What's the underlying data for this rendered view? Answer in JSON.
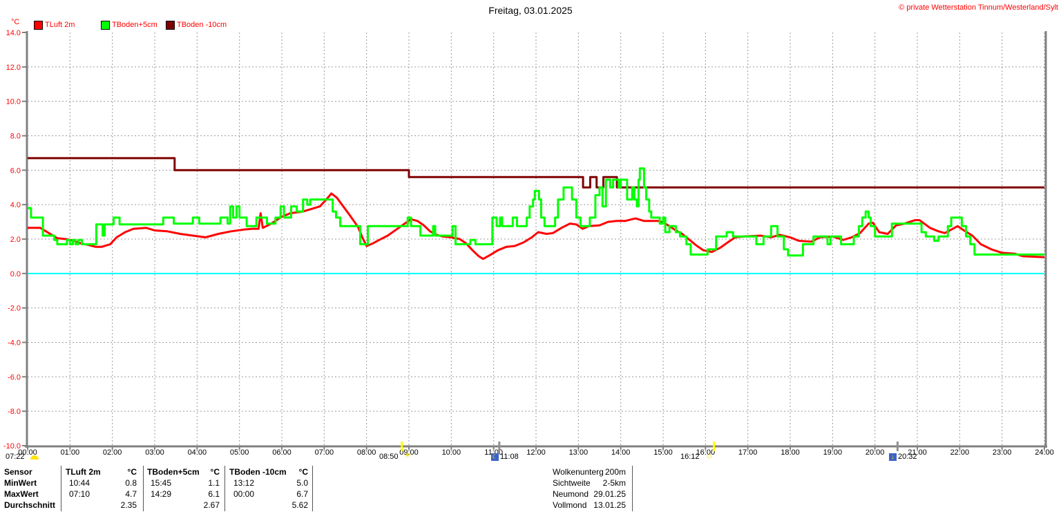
{
  "header": {
    "title": "Freitag, 03.01.2025",
    "copyright": "© private Wetterstation Tinnum/Westerland/Sylt"
  },
  "legend": {
    "items": [
      {
        "label": "TLuft 2m",
        "color": "#ff0000"
      },
      {
        "label": "TBoden+5cm",
        "color": "#00ff00"
      },
      {
        "label": "TBoden -10cm",
        "color": "#800000"
      }
    ]
  },
  "sun_moon": {
    "dawn": "07:22",
    "sunrise": "08:50",
    "moonrise": "11:08",
    "sunset": "16:12",
    "moonset": "20:32",
    "axis_marks": [
      {
        "time": "08:50",
        "kind": "sun"
      },
      {
        "time": "11:08",
        "kind": "moon"
      },
      {
        "time": "16:12",
        "kind": "sun"
      },
      {
        "time": "20:32",
        "kind": "moon"
      }
    ]
  },
  "chart_data": {
    "type": "line",
    "title": "Freitag, 03.01.2025",
    "x_axis": {
      "min": 0,
      "max": 24,
      "tick_hours": 1,
      "labels": [
        "00:00",
        "01:00",
        "02:00",
        "03:00",
        "04:00",
        "05:00",
        "06:00",
        "07:00",
        "08:00",
        "09:00",
        "10:00",
        "11:00",
        "12:00",
        "13:00",
        "14:00",
        "15:00",
        "16:00",
        "17:00",
        "18:00",
        "19:00",
        "20:00",
        "21:00",
        "22:00",
        "23:00",
        "24:00"
      ]
    },
    "y_axis": {
      "unit": "°C",
      "min": -10,
      "max": 14,
      "tick_step": 2,
      "label_color": "#ff0000",
      "labels": [
        "14.0",
        "12.0",
        "10.0",
        "8.0",
        "6.0",
        "4.0",
        "2.0",
        "0.0",
        "-2.0",
        "-4.0",
        "-6.0",
        "-8.0",
        "-10.0"
      ]
    },
    "grid": true,
    "legend_position": "top-left",
    "zero_line_color": "#00ffff",
    "grid_color": "#9a9a9a",
    "axis_color": "#808080",
    "series": [
      {
        "name": "TLuft 2m",
        "color": "#ff0000",
        "interpolation": "linear",
        "points": [
          [
            0,
            2.65
          ],
          [
            0.3,
            2.65
          ],
          [
            0.5,
            2.35
          ],
          [
            0.7,
            2.05
          ],
          [
            0.9,
            2.0
          ],
          [
            1.1,
            1.9
          ],
          [
            1.25,
            1.75
          ],
          [
            1.45,
            1.65
          ],
          [
            1.6,
            1.55
          ],
          [
            1.75,
            1.55
          ],
          [
            1.95,
            1.7
          ],
          [
            2.1,
            2.1
          ],
          [
            2.3,
            2.4
          ],
          [
            2.5,
            2.6
          ],
          [
            2.8,
            2.65
          ],
          [
            3.0,
            2.5
          ],
          [
            3.3,
            2.45
          ],
          [
            3.6,
            2.3
          ],
          [
            3.9,
            2.2
          ],
          [
            4.2,
            2.1
          ],
          [
            4.5,
            2.3
          ],
          [
            4.8,
            2.45
          ],
          [
            5.1,
            2.55
          ],
          [
            5.3,
            2.6
          ],
          [
            5.45,
            2.6
          ],
          [
            5.5,
            3.5
          ],
          [
            5.55,
            2.65
          ],
          [
            5.75,
            2.9
          ],
          [
            6.0,
            3.3
          ],
          [
            6.2,
            3.5
          ],
          [
            6.35,
            3.55
          ],
          [
            6.5,
            3.6
          ],
          [
            6.7,
            3.75
          ],
          [
            6.9,
            3.9
          ],
          [
            7.05,
            4.3
          ],
          [
            7.17,
            4.65
          ],
          [
            7.3,
            4.4
          ],
          [
            7.45,
            3.9
          ],
          [
            7.6,
            3.4
          ],
          [
            7.8,
            2.7
          ],
          [
            7.9,
            2.1
          ],
          [
            8.0,
            1.6
          ],
          [
            8.15,
            1.75
          ],
          [
            8.3,
            1.95
          ],
          [
            8.5,
            2.2
          ],
          [
            8.7,
            2.55
          ],
          [
            8.9,
            2.9
          ],
          [
            9.05,
            3.15
          ],
          [
            9.2,
            3.05
          ],
          [
            9.35,
            2.8
          ],
          [
            9.5,
            2.45
          ],
          [
            9.65,
            2.25
          ],
          [
            9.8,
            2.15
          ],
          [
            10.0,
            2.1
          ],
          [
            10.2,
            2.0
          ],
          [
            10.35,
            1.75
          ],
          [
            10.5,
            1.35
          ],
          [
            10.65,
            1.0
          ],
          [
            10.75,
            0.85
          ],
          [
            10.9,
            1.05
          ],
          [
            11.1,
            1.35
          ],
          [
            11.3,
            1.55
          ],
          [
            11.5,
            1.6
          ],
          [
            11.7,
            1.8
          ],
          [
            11.9,
            2.1
          ],
          [
            12.05,
            2.4
          ],
          [
            12.25,
            2.3
          ],
          [
            12.4,
            2.35
          ],
          [
            12.6,
            2.65
          ],
          [
            12.8,
            2.9
          ],
          [
            12.95,
            2.85
          ],
          [
            13.1,
            2.6
          ],
          [
            13.25,
            2.75
          ],
          [
            13.5,
            2.8
          ],
          [
            13.7,
            3.0
          ],
          [
            13.9,
            3.05
          ],
          [
            14.1,
            3.05
          ],
          [
            14.35,
            3.2
          ],
          [
            14.55,
            3.05
          ],
          [
            14.9,
            3.05
          ],
          [
            15.05,
            2.9
          ],
          [
            15.15,
            2.75
          ],
          [
            15.3,
            2.5
          ],
          [
            15.45,
            2.3
          ],
          [
            15.6,
            2.0
          ],
          [
            15.8,
            1.6
          ],
          [
            15.95,
            1.35
          ],
          [
            16.15,
            1.25
          ],
          [
            16.35,
            1.5
          ],
          [
            16.55,
            1.85
          ],
          [
            16.7,
            2.1
          ],
          [
            16.9,
            2.15
          ],
          [
            17.3,
            2.2
          ],
          [
            17.55,
            2.1
          ],
          [
            17.75,
            2.25
          ],
          [
            18.0,
            2.1
          ],
          [
            18.2,
            1.9
          ],
          [
            18.5,
            1.85
          ],
          [
            18.7,
            2.1
          ],
          [
            19.0,
            2.15
          ],
          [
            19.25,
            1.95
          ],
          [
            19.45,
            2.1
          ],
          [
            19.65,
            2.35
          ],
          [
            19.85,
            2.9
          ],
          [
            19.95,
            2.95
          ],
          [
            20.1,
            2.4
          ],
          [
            20.3,
            2.3
          ],
          [
            20.5,
            2.8
          ],
          [
            20.7,
            2.9
          ],
          [
            20.95,
            3.1
          ],
          [
            21.05,
            3.1
          ],
          [
            21.3,
            2.65
          ],
          [
            21.5,
            2.45
          ],
          [
            21.65,
            2.35
          ],
          [
            21.8,
            2.55
          ],
          [
            21.95,
            2.75
          ],
          [
            22.1,
            2.5
          ],
          [
            22.3,
            2.2
          ],
          [
            22.5,
            1.7
          ],
          [
            22.75,
            1.4
          ],
          [
            23.0,
            1.2
          ],
          [
            23.3,
            1.15
          ],
          [
            23.5,
            1.0
          ],
          [
            24.0,
            0.95
          ]
        ]
      },
      {
        "name": "TBoden -10cm",
        "color": "#800000",
        "interpolation": "step",
        "points": [
          [
            0,
            6.7
          ],
          [
            3.47,
            6.0
          ],
          [
            9.0,
            5.6
          ],
          [
            13.11,
            5.0
          ],
          [
            13.28,
            5.6
          ],
          [
            13.43,
            5.0
          ],
          [
            13.59,
            5.6
          ],
          [
            13.91,
            5.0
          ]
        ]
      },
      {
        "name": "TBoden+5cm",
        "color": "#00ff00",
        "interpolation": "step",
        "points": [
          [
            0.0,
            3.8
          ],
          [
            0.08,
            3.25
          ],
          [
            0.36,
            2.2
          ],
          [
            0.63,
            1.95
          ],
          [
            0.7,
            1.7
          ],
          [
            0.93,
            1.95
          ],
          [
            1.0,
            1.7
          ],
          [
            1.07,
            1.95
          ],
          [
            1.13,
            1.7
          ],
          [
            1.2,
            1.95
          ],
          [
            1.28,
            1.7
          ],
          [
            1.62,
            2.85
          ],
          [
            1.77,
            2.2
          ],
          [
            1.82,
            2.85
          ],
          [
            2.03,
            3.25
          ],
          [
            2.17,
            2.85
          ],
          [
            3.2,
            3.25
          ],
          [
            3.45,
            2.9
          ],
          [
            3.9,
            3.25
          ],
          [
            4.05,
            2.9
          ],
          [
            4.55,
            3.25
          ],
          [
            4.72,
            2.9
          ],
          [
            4.78,
            3.9
          ],
          [
            4.85,
            3.25
          ],
          [
            4.93,
            3.9
          ],
          [
            5.0,
            3.25
          ],
          [
            5.17,
            2.75
          ],
          [
            5.4,
            3.25
          ],
          [
            5.65,
            2.9
          ],
          [
            5.85,
            3.25
          ],
          [
            5.97,
            3.9
          ],
          [
            6.05,
            3.25
          ],
          [
            6.22,
            3.9
          ],
          [
            6.35,
            3.6
          ],
          [
            6.5,
            4.3
          ],
          [
            6.6,
            4.0
          ],
          [
            6.67,
            4.3
          ],
          [
            7.2,
            3.6
          ],
          [
            7.28,
            3.25
          ],
          [
            7.38,
            2.75
          ],
          [
            7.85,
            1.7
          ],
          [
            8.03,
            2.75
          ],
          [
            8.97,
            3.25
          ],
          [
            9.05,
            2.75
          ],
          [
            9.27,
            2.2
          ],
          [
            9.57,
            2.75
          ],
          [
            9.62,
            2.2
          ],
          [
            10.03,
            2.75
          ],
          [
            10.1,
            1.7
          ],
          [
            10.45,
            1.95
          ],
          [
            10.57,
            1.7
          ],
          [
            10.97,
            3.25
          ],
          [
            11.07,
            2.75
          ],
          [
            11.15,
            3.25
          ],
          [
            11.2,
            2.75
          ],
          [
            11.45,
            3.25
          ],
          [
            11.55,
            2.75
          ],
          [
            11.78,
            3.25
          ],
          [
            11.85,
            3.9
          ],
          [
            11.93,
            4.3
          ],
          [
            11.97,
            4.8
          ],
          [
            12.07,
            4.3
          ],
          [
            12.12,
            3.25
          ],
          [
            12.2,
            2.75
          ],
          [
            12.45,
            3.25
          ],
          [
            12.52,
            4.3
          ],
          [
            12.65,
            5.0
          ],
          [
            12.85,
            4.3
          ],
          [
            12.95,
            3.25
          ],
          [
            13.05,
            2.75
          ],
          [
            13.27,
            3.25
          ],
          [
            13.4,
            4.55
          ],
          [
            13.5,
            5.0
          ],
          [
            13.57,
            3.9
          ],
          [
            13.65,
            5.45
          ],
          [
            13.75,
            5.0
          ],
          [
            13.82,
            5.45
          ],
          [
            13.95,
            5.0
          ],
          [
            14.0,
            5.45
          ],
          [
            14.15,
            4.3
          ],
          [
            14.27,
            5.0
          ],
          [
            14.32,
            4.3
          ],
          [
            14.38,
            3.9
          ],
          [
            14.42,
            5.45
          ],
          [
            14.45,
            6.1
          ],
          [
            14.55,
            5.0
          ],
          [
            14.6,
            4.3
          ],
          [
            14.67,
            3.6
          ],
          [
            14.72,
            3.25
          ],
          [
            14.92,
            2.9
          ],
          [
            15.0,
            3.25
          ],
          [
            15.05,
            2.4
          ],
          [
            15.15,
            2.75
          ],
          [
            15.3,
            2.4
          ],
          [
            15.4,
            2.15
          ],
          [
            15.55,
            1.7
          ],
          [
            15.65,
            1.1
          ],
          [
            16.05,
            1.4
          ],
          [
            16.25,
            2.15
          ],
          [
            16.5,
            2.4
          ],
          [
            16.65,
            2.15
          ],
          [
            17.2,
            1.7
          ],
          [
            17.37,
            2.15
          ],
          [
            17.55,
            2.75
          ],
          [
            17.7,
            2.15
          ],
          [
            17.85,
            1.4
          ],
          [
            17.95,
            1.05
          ],
          [
            18.3,
            1.7
          ],
          [
            18.55,
            2.15
          ],
          [
            18.88,
            1.7
          ],
          [
            18.95,
            2.15
          ],
          [
            19.2,
            1.7
          ],
          [
            19.5,
            2.15
          ],
          [
            19.62,
            2.75
          ],
          [
            19.7,
            3.25
          ],
          [
            19.78,
            3.6
          ],
          [
            19.85,
            3.25
          ],
          [
            19.9,
            2.75
          ],
          [
            20.0,
            2.15
          ],
          [
            20.4,
            2.9
          ],
          [
            21.1,
            2.4
          ],
          [
            21.2,
            2.15
          ],
          [
            21.4,
            1.9
          ],
          [
            21.5,
            2.15
          ],
          [
            21.72,
            2.75
          ],
          [
            21.8,
            3.25
          ],
          [
            22.05,
            2.75
          ],
          [
            22.15,
            2.15
          ],
          [
            22.25,
            1.7
          ],
          [
            22.35,
            1.1
          ]
        ]
      }
    ]
  },
  "stats": {
    "row_labels": [
      "Sensor",
      "MinWert",
      "MaxWert",
      "Durchschnitt"
    ],
    "columns": [
      {
        "name": "TLuft 2m",
        "unit": "°C",
        "min_time": "10:44",
        "min": "0.8",
        "max_time": "07:10",
        "max": "4.7",
        "avg": "2.35"
      },
      {
        "name": "TBoden+5cm",
        "unit": "°C",
        "min_time": "15:45",
        "min": "1.1",
        "max_time": "14:29",
        "max": "6.1",
        "avg": "2.67"
      },
      {
        "name": "TBoden -10cm",
        "unit": "°C",
        "min_time": "13:12",
        "min": "5.0",
        "max_time": "00:00",
        "max": "6.7",
        "avg": "5.62"
      }
    ],
    "info": [
      {
        "label": "Wolkenunterg",
        "value": "200m"
      },
      {
        "label": "Sichtweite",
        "value": "2-5km"
      },
      {
        "label": "Neumond",
        "value": "29.01.25"
      },
      {
        "label": "Vollmond",
        "value": "13.01.25"
      }
    ]
  }
}
